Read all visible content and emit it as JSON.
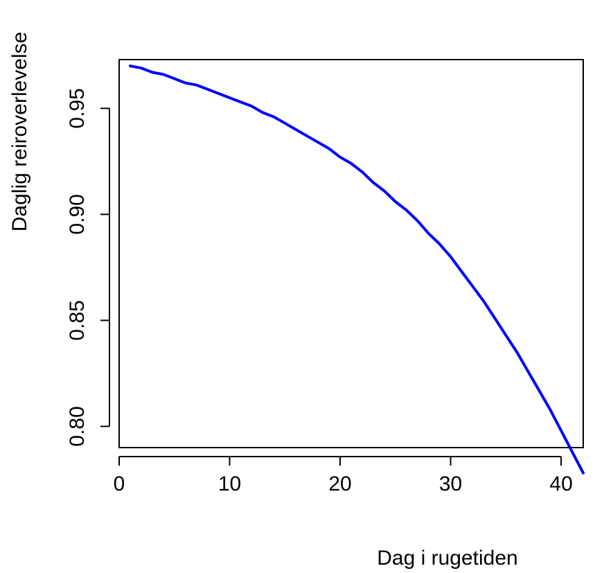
{
  "chart_data": {
    "type": "line",
    "title": "",
    "xlabel": "Dag i rugetiden",
    "ylabel": "Daglig reiroverlevelse",
    "xlim": [
      0,
      42
    ],
    "ylim": [
      0.79,
      0.973
    ],
    "x_ticks": [
      0,
      10,
      20,
      30,
      40
    ],
    "x_tick_labels": [
      "0",
      "10",
      "20",
      "30",
      "40"
    ],
    "y_ticks": [
      0.8,
      0.85,
      0.9,
      0.95
    ],
    "y_tick_labels": [
      "0.80",
      "0.85",
      "0.90",
      "0.95"
    ],
    "grid": false,
    "series": [
      {
        "color": "#0000ff",
        "x": [
          1,
          2,
          3,
          4,
          5,
          6,
          7,
          8,
          9,
          10,
          11,
          12,
          13,
          14,
          15,
          16,
          17,
          18,
          19,
          20,
          21,
          22,
          23,
          24,
          25,
          26,
          27,
          28,
          29,
          30,
          31,
          32,
          33,
          34,
          35,
          36,
          37,
          38,
          39,
          40,
          41,
          42
        ],
        "values": [
          0.97,
          0.969,
          0.967,
          0.966,
          0.964,
          0.962,
          0.961,
          0.959,
          0.957,
          0.955,
          0.953,
          0.951,
          0.948,
          0.946,
          0.943,
          0.94,
          0.937,
          0.934,
          0.931,
          0.927,
          0.924,
          0.92,
          0.915,
          0.911,
          0.906,
          0.902,
          0.897,
          0.891,
          0.886,
          0.88,
          0.873,
          0.866,
          0.859,
          0.851,
          0.843,
          0.835,
          0.826,
          0.817,
          0.808,
          0.798,
          0.788,
          0.778
        ]
      }
    ]
  }
}
